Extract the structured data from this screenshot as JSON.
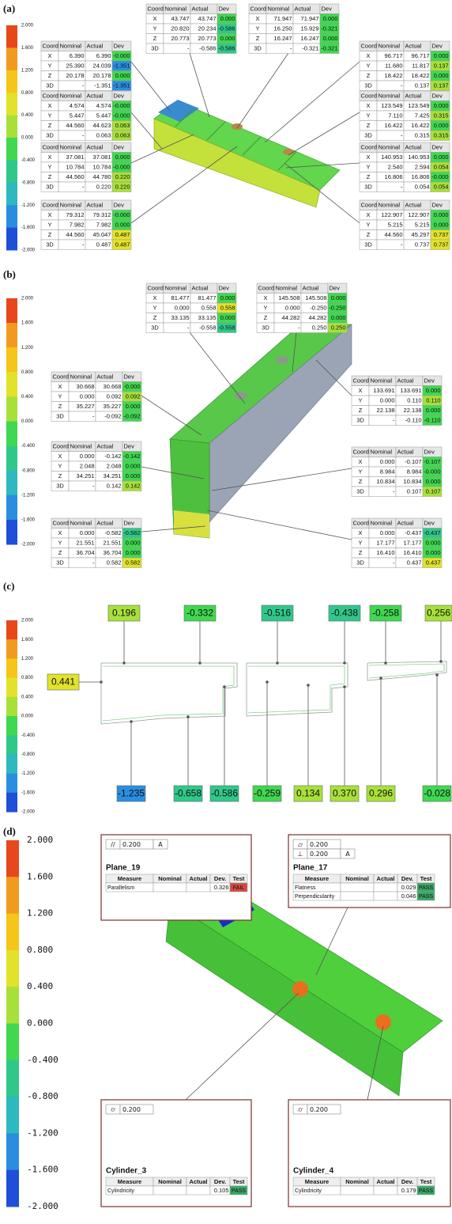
{
  "scale_colors": [
    "#e8471c",
    "#f29a1f",
    "#f5c518",
    "#e2e22a",
    "#a8e03a",
    "#40d850",
    "#30c88a",
    "#2eb8c0",
    "#2a8ee0",
    "#1f4fd8"
  ],
  "panels": [
    {
      "label": "(a)",
      "scale": [
        "2.000",
        "1.600",
        "1.200",
        "0.800",
        "0.400",
        "0.000",
        "-0.400",
        "-0.800",
        "-1.200",
        "-1.600",
        "-2.000"
      ],
      "tables": [
        {
          "header": [
            "Coord.",
            "Nominal",
            "Actual",
            "Dev"
          ],
          "rows": [
            [
              "X",
              "43.747",
              "43.747",
              "0.000"
            ],
            [
              "Y",
              "20.820",
              "20.234",
              "-0.586"
            ],
            [
              "Z",
              "20.773",
              "20.773",
              "0.000"
            ],
            [
              "3D",
              "-",
              "-0.586",
              "-0.586"
            ]
          ]
        },
        {
          "header": [
            "Coord.",
            "Nominal",
            "Actual",
            "Dev"
          ],
          "rows": [
            [
              "X",
              "71.947",
              "71.947",
              "0.000"
            ],
            [
              "Y",
              "16.250",
              "15.929",
              "-0.321"
            ],
            [
              "Z",
              "16.247",
              "16.247",
              "0.000"
            ],
            [
              "3D",
              "-",
              "-0.321",
              "-0.321"
            ]
          ]
        },
        {
          "header": [
            "Coord.",
            "Nominal",
            "Actual",
            "Dev"
          ],
          "rows": [
            [
              "X",
              "6.390",
              "6.390",
              "-0.000"
            ],
            [
              "Y",
              "25.390",
              "24.039",
              "-1.351"
            ],
            [
              "Z",
              "20.178",
              "20.178",
              "0.000"
            ],
            [
              "3D",
              "-",
              "-1.351",
              "-1.351"
            ]
          ]
        },
        {
          "header": [
            "Coord.",
            "Nominal",
            "Actual",
            "Dev"
          ],
          "rows": [
            [
              "X",
              "4.574",
              "4.574",
              "-0.000"
            ],
            [
              "Y",
              "5.447",
              "5.447",
              "-0.000"
            ],
            [
              "Z",
              "44.560",
              "44.623",
              "0.063"
            ],
            [
              "3D",
              "-",
              "0.063",
              "0.063"
            ]
          ]
        },
        {
          "header": [
            "Coord.",
            "Nominal",
            "Actual",
            "Dev"
          ],
          "rows": [
            [
              "X",
              "37.081",
              "37.081",
              "0.000"
            ],
            [
              "Y",
              "10.784",
              "10.784",
              "-0.000"
            ],
            [
              "Z",
              "44.560",
              "44.780",
              "0.220"
            ],
            [
              "3D",
              "-",
              "0.220",
              "0.220"
            ]
          ]
        },
        {
          "header": [
            "Coord.",
            "Nominal",
            "Actual",
            "Dev"
          ],
          "rows": [
            [
              "X",
              "79.312",
              "79.312",
              "-0.000"
            ],
            [
              "Y",
              "7.982",
              "7.982",
              "0.000"
            ],
            [
              "Z",
              "44.560",
              "45.047",
              "0.487"
            ],
            [
              "3D",
              "-",
              "0.487",
              "0.487"
            ]
          ]
        },
        {
          "header": [
            "Coord.",
            "Nominal",
            "Actual",
            "Dev"
          ],
          "rows": [
            [
              "X",
              "96.717",
              "96.717",
              "0.000"
            ],
            [
              "Y",
              "11.680",
              "11.817",
              "0.137"
            ],
            [
              "Z",
              "18.422",
              "18.422",
              "0.000"
            ],
            [
              "3D",
              "-",
              "0.137",
              "0.137"
            ]
          ]
        },
        {
          "header": [
            "Coord.",
            "Nominal",
            "Actual",
            "Dev"
          ],
          "rows": [
            [
              "X",
              "123.549",
              "123.549",
              "0.000"
            ],
            [
              "Y",
              "7.110",
              "7.425",
              "0.315"
            ],
            [
              "Z",
              "16.422",
              "16.422",
              "0.000"
            ],
            [
              "3D",
              "-",
              "0.315",
              "0.315"
            ]
          ]
        },
        {
          "header": [
            "Coord.",
            "Nominal",
            "Actual",
            "Dev"
          ],
          "rows": [
            [
              "X",
              "140.953",
              "140.953",
              "0.000"
            ],
            [
              "Y",
              "2.540",
              "2.594",
              "0.054"
            ],
            [
              "Z",
              "16.806",
              "16.806",
              "-0.000"
            ],
            [
              "3D",
              "-",
              "0.054",
              "0.054"
            ]
          ]
        },
        {
          "header": [
            "Coord.",
            "Nominal",
            "Actual",
            "Dev"
          ],
          "rows": [
            [
              "X",
              "122.907",
              "122.907",
              "0.000"
            ],
            [
              "Y",
              "5.215",
              "5.215",
              "0.000"
            ],
            [
              "Z",
              "44.560",
              "45.297",
              "0.737"
            ],
            [
              "3D",
              "-",
              "0.737",
              "0.737"
            ]
          ]
        }
      ]
    },
    {
      "label": "(b)",
      "scale": [
        "2.000",
        "1.600",
        "1.200",
        "0.800",
        "0.400",
        "0.000",
        "-0.400",
        "-0.800",
        "-1.200",
        "-1.600",
        "-2.000"
      ],
      "tables": [
        {
          "header": [
            "Coord.",
            "Nominal",
            "Actual",
            "Dev"
          ],
          "rows": [
            [
              "X",
              "81.477",
              "81.477",
              "0.000"
            ],
            [
              "Y",
              "0.000",
              "0.558",
              "0.558"
            ],
            [
              "Z",
              "33.135",
              "33.135",
              "0.000"
            ],
            [
              "3D",
              "-",
              "-0.558",
              "-0.558"
            ]
          ]
        },
        {
          "header": [
            "Coord.",
            "Nominal",
            "Actual",
            "Dev"
          ],
          "rows": [
            [
              "X",
              "145.508",
              "145.508",
              "0.000"
            ],
            [
              "Y",
              "0.000",
              "-0.250",
              "-0.250"
            ],
            [
              "Z",
              "44.282",
              "44.282",
              "0.000"
            ],
            [
              "3D",
              "-",
              "0.250",
              "0.250"
            ]
          ]
        },
        {
          "header": [
            "Coord.",
            "Nominal",
            "Actual",
            "Dev"
          ],
          "rows": [
            [
              "X",
              "30.668",
              "30.668",
              "-0.000"
            ],
            [
              "Y",
              "0.000",
              "0.092",
              "0.092"
            ],
            [
              "Z",
              "35.227",
              "35.227",
              "0.000"
            ],
            [
              "3D",
              "-",
              "-0.092",
              "-0.092"
            ]
          ]
        },
        {
          "header": [
            "Coord.",
            "Nominal",
            "Actual",
            "Dev"
          ],
          "rows": [
            [
              "X",
              "0.000",
              "-0.142",
              "-0.142"
            ],
            [
              "Y",
              "2.048",
              "2.048",
              "0.000"
            ],
            [
              "Z",
              "34.251",
              "34.251",
              "0.000"
            ],
            [
              "3D",
              "-",
              "0.142",
              "0.142"
            ]
          ]
        },
        {
          "header": [
            "Coord.",
            "Nominal",
            "Actual",
            "Dev"
          ],
          "rows": [
            [
              "X",
              "0.000",
              "-0.582",
              "-0.582"
            ],
            [
              "Y",
              "21.551",
              "21.551",
              "0.000"
            ],
            [
              "Z",
              "36.704",
              "36.704",
              "0.000"
            ],
            [
              "3D",
              "-",
              "0.582",
              "0.582"
            ]
          ]
        },
        {
          "header": [
            "Coord.",
            "Nominal",
            "Actual",
            "Dev"
          ],
          "rows": [
            [
              "X",
              "133.691",
              "133.691",
              "0.000"
            ],
            [
              "Y",
              "0.000",
              "0.110",
              "0.110"
            ],
            [
              "Z",
              "22.138",
              "22.138",
              "0.000"
            ],
            [
              "3D",
              "-",
              "-0.110",
              "-0.110"
            ]
          ]
        },
        {
          "header": [
            "Coord.",
            "Nominal",
            "Actual",
            "Dev"
          ],
          "rows": [
            [
              "X",
              "0.000",
              "-0.107",
              "-0.107"
            ],
            [
              "Y",
              "8.984",
              "8.984",
              "-0.000"
            ],
            [
              "Z",
              "10.834",
              "10.834",
              "0.000"
            ],
            [
              "3D",
              "-",
              "0.107",
              "0.107"
            ]
          ]
        },
        {
          "header": [
            "Coord.",
            "Nominal",
            "Actual",
            "Dev"
          ],
          "rows": [
            [
              "X",
              "0.000",
              "-0.437",
              "-0.437"
            ],
            [
              "Y",
              "17.177",
              "17.177",
              "0.000"
            ],
            [
              "Z",
              "16.410",
              "16.410",
              "0.000"
            ],
            [
              "3D",
              "-",
              "0.437",
              "0.437"
            ]
          ]
        }
      ]
    },
    {
      "label": "(c)",
      "scale": [
        "2.000",
        "1.600",
        "1.200",
        "0.800",
        "0.400",
        "0.000",
        "-0.400",
        "-0.800",
        "-1.200",
        "-1.600",
        "-2.000"
      ],
      "top_labels": [
        "0.196",
        "-0.332",
        "-0.516",
        "-0.438",
        "-0.258",
        "0.256"
      ],
      "left_labels": [
        "0.441"
      ],
      "bottom_labels": [
        "-1.235",
        "-0.658",
        "-0.586",
        "-0.259",
        "0.134",
        "0.370",
        "0.296",
        "-0.028"
      ]
    },
    {
      "label": "(d)",
      "scale": [
        "2.000",
        "1.600",
        "1.200",
        "0.800",
        "0.400",
        "0.000",
        "-0.400",
        "-0.800",
        "-1.200",
        "-1.600",
        "-2.000"
      ],
      "callouts": [
        {
          "name": "Plane_19",
          "tolerances": [
            {
              "symbol": "//",
              "value": "0.200",
              "datum": "A"
            }
          ],
          "header": [
            "Measure",
            "Nominal",
            "Actual",
            "Dev.",
            "Test"
          ],
          "rows": [
            {
              "measure": "Parallelism",
              "dev": "0.326",
              "test": "FAIL"
            }
          ]
        },
        {
          "name": "Plane_17",
          "tolerances": [
            {
              "symbol": "▱",
              "value": "0.200"
            },
            {
              "symbol": "⊥",
              "value": "0.200",
              "datum": "A"
            }
          ],
          "header": [
            "Measure",
            "Nominal",
            "Actual",
            "Dev.",
            "Test"
          ],
          "rows": [
            {
              "measure": "Flatness",
              "dev": "0.029",
              "test": "PASS"
            },
            {
              "measure": "Perpendicularity",
              "dev": "0.046",
              "test": "PASS"
            }
          ]
        },
        {
          "name": "Cylinder_3",
          "tolerances": [
            {
              "symbol": "⌭",
              "value": "0.200"
            }
          ],
          "header": [
            "Measure",
            "Nominal",
            "Actual",
            "Dev.",
            "Test"
          ],
          "rows": [
            {
              "measure": "Cylindricity",
              "dev": "0.105",
              "test": "PASS"
            }
          ]
        },
        {
          "name": "Cylinder_4",
          "tolerances": [
            {
              "symbol": "⌭",
              "value": "0.200"
            }
          ],
          "header": [
            "Measure",
            "Nominal",
            "Actual",
            "Dev.",
            "Test"
          ],
          "rows": [
            {
              "measure": "Cylindricity",
              "dev": "0.179",
              "test": "PASS"
            }
          ]
        }
      ]
    }
  ]
}
